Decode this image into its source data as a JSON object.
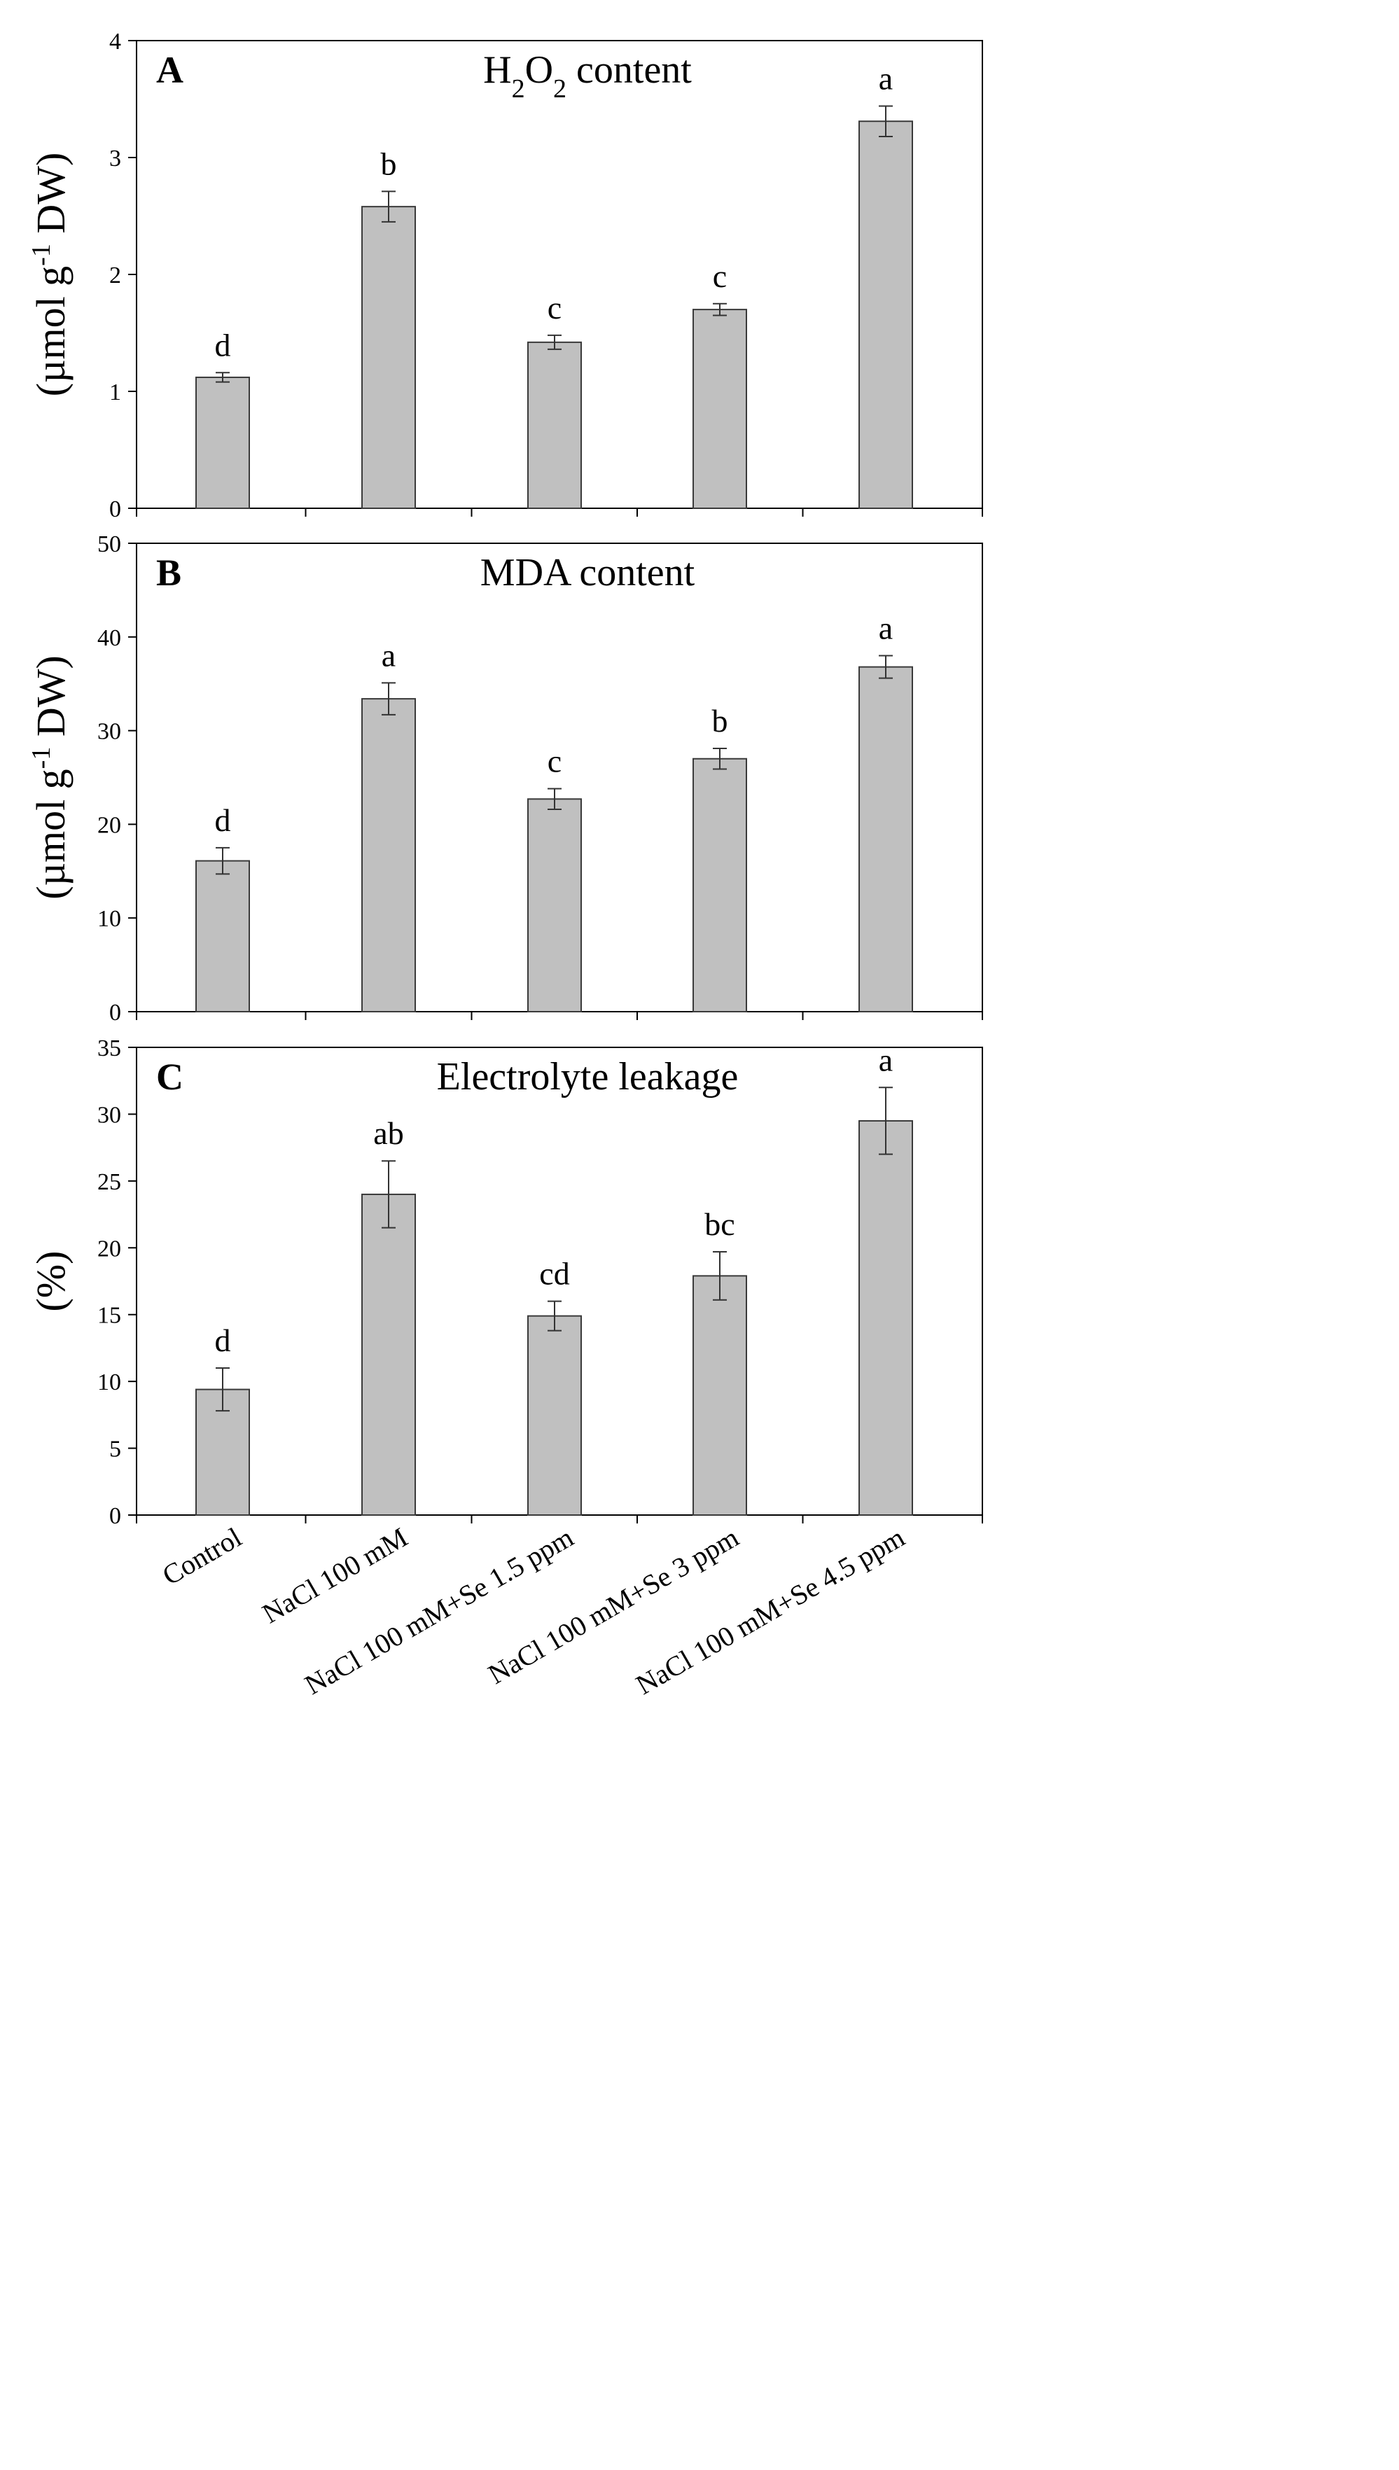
{
  "chart_data": [
    {
      "panel": "A",
      "type": "bar",
      "title": "H2O2 content",
      "title_parts": {
        "base1": "H",
        "sub1": "2",
        "base2": "O",
        "sub2": "2",
        "rest": " content"
      },
      "ylabel": "(µmol g-1 DW)",
      "ylabel_parts": {
        "pre": "(µmol g",
        "sup": "-1",
        "post": " DW)"
      },
      "categories": [
        "Control",
        "NaCl 100 mM",
        "NaCl 100 mM+Se 1.5 ppm",
        "NaCl 100 mM+Se 3 ppm",
        "NaCl 100 mM+Se 4.5 ppm"
      ],
      "values": [
        1.12,
        2.58,
        1.42,
        1.7,
        3.31
      ],
      "errors": [
        0.04,
        0.13,
        0.06,
        0.05,
        0.13
      ],
      "significance": [
        "d",
        "b",
        "c",
        "c",
        "a"
      ],
      "ylim": [
        0,
        4
      ],
      "yticks": [
        0,
        1,
        2,
        3,
        4
      ],
      "grid": false
    },
    {
      "panel": "B",
      "type": "bar",
      "title": "MDA content",
      "ylabel": "(µmol g-1 DW)",
      "ylabel_parts": {
        "pre": "(µmol g",
        "sup": "-1",
        "post": " DW)"
      },
      "categories": [
        "Control",
        "NaCl 100 mM",
        "NaCl 100 mM+Se 1.5 ppm",
        "NaCl 100 mM+Se 3 ppm",
        "NaCl 100 mM+Se 4.5 ppm"
      ],
      "values": [
        16.1,
        33.4,
        22.7,
        27.0,
        36.8
      ],
      "errors": [
        1.4,
        1.7,
        1.1,
        1.1,
        1.2
      ],
      "significance": [
        "d",
        "a",
        "c",
        "b",
        "a"
      ],
      "ylim": [
        0,
        50
      ],
      "yticks": [
        0,
        10,
        20,
        30,
        40,
        50
      ],
      "grid": false
    },
    {
      "panel": "C",
      "type": "bar",
      "title": "Electrolyte  leakage",
      "ylabel": "(%)",
      "categories": [
        "Control",
        "NaCl 100 mM",
        "NaCl 100 mM+Se 1.5 ppm",
        "NaCl 100 mM+Se 3 ppm",
        "NaCl 100 mM+Se 4.5 ppm"
      ],
      "values": [
        9.4,
        24.0,
        14.9,
        17.9,
        29.5
      ],
      "errors": [
        1.6,
        2.5,
        1.1,
        1.8,
        2.5
      ],
      "significance": [
        "d",
        "ab",
        "cd",
        "bc",
        "a"
      ],
      "ylim": [
        0,
        35
      ],
      "yticks": [
        0,
        5,
        10,
        15,
        20,
        25,
        30,
        35
      ],
      "grid": false
    }
  ]
}
